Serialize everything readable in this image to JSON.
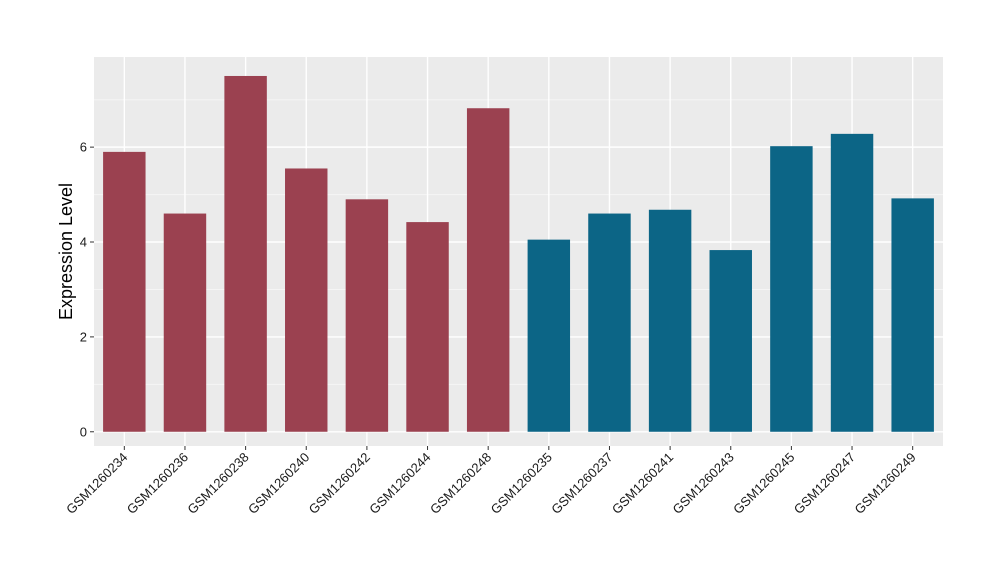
{
  "chart_data": {
    "type": "bar",
    "title": "",
    "xlabel": "",
    "ylabel": "Expression Level",
    "categories": [
      "GSM1260234",
      "GSM1260236",
      "GSM1260238",
      "GSM1260240",
      "GSM1260242",
      "GSM1260244",
      "GSM1260248",
      "GSM1260235",
      "GSM1260237",
      "GSM1260241",
      "GSM1260243",
      "GSM1260245",
      "GSM1260247",
      "GSM1260249"
    ],
    "values": [
      5.9,
      4.6,
      7.5,
      5.55,
      4.9,
      4.42,
      6.82,
      4.05,
      4.6,
      4.68,
      3.83,
      6.02,
      6.28,
      4.92
    ],
    "groups": [
      0,
      0,
      0,
      0,
      0,
      0,
      0,
      1,
      1,
      1,
      1,
      1,
      1,
      1
    ],
    "group_colors": [
      "#9b4150",
      "#0c6586"
    ],
    "ylim": [
      -0.3,
      7.9
    ],
    "yticks": [
      0,
      2,
      4,
      6
    ],
    "grid": true,
    "legend": "none",
    "colors": {
      "panel_background": "#ebebeb",
      "grid_major": "#ffffff",
      "grid_minor": "#f5f5f5",
      "tick_label": "#1a1a1a",
      "axis_title": "#000000"
    }
  }
}
